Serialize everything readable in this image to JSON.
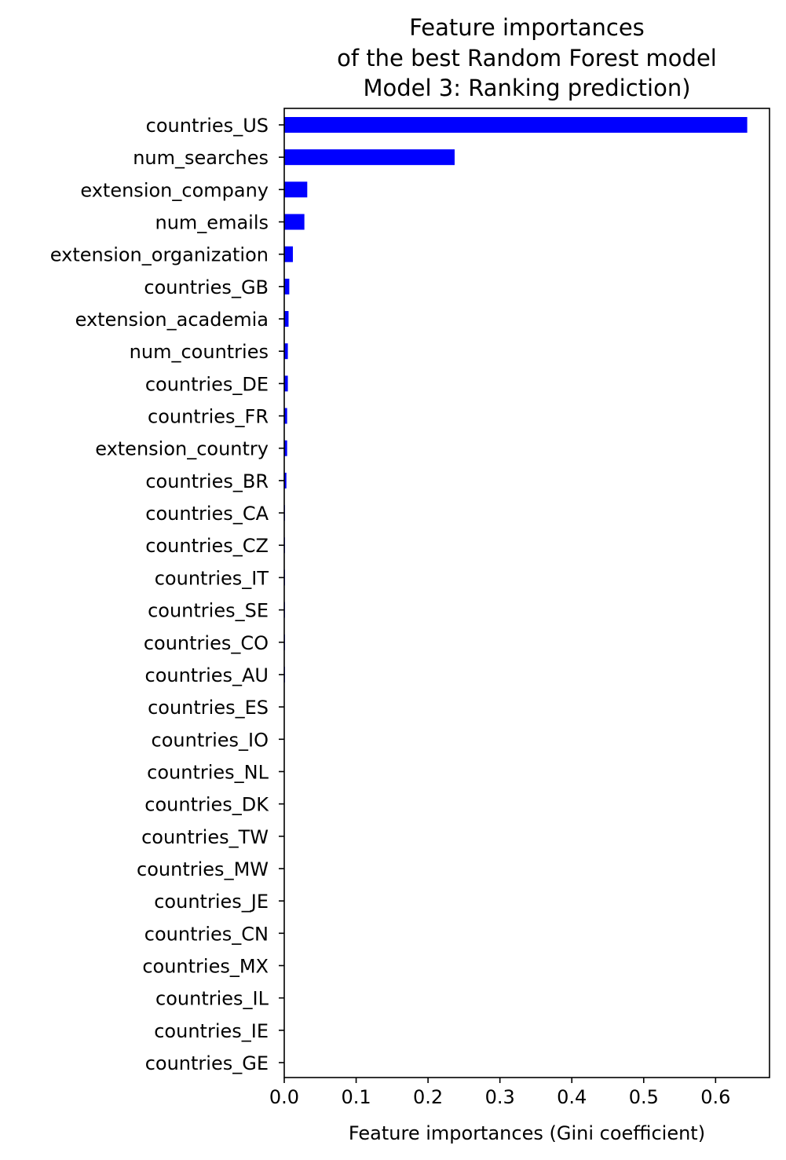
{
  "chart_data": {
    "type": "bar",
    "orientation": "horizontal",
    "title_lines": [
      "Feature importances",
      "of the best Random Forest model",
      "Model 3: Ranking prediction)"
    ],
    "xlabel": "Feature importances (Gini coefficient)",
    "ylabel": "",
    "xlim": [
      0,
      0.675
    ],
    "xticks": [
      "0.0",
      "0.1",
      "0.2",
      "0.3",
      "0.4",
      "0.5",
      "0.6"
    ],
    "bar_color": "#0000ff",
    "grid": false,
    "categories": [
      "countries_US",
      "num_searches",
      "extension_company",
      "num_emails",
      "extension_organization",
      "countries_GB",
      "extension_academia",
      "num_countries",
      "countries_DE",
      "countries_FR",
      "extension_country",
      "countries_BR",
      "countries_CA",
      "countries_CZ",
      "countries_IT",
      "countries_SE",
      "countries_CO",
      "countries_AU",
      "countries_ES",
      "countries_IO",
      "countries_NL",
      "countries_DK",
      "countries_TW",
      "countries_MW",
      "countries_JE",
      "countries_CN",
      "countries_MX",
      "countries_IL",
      "countries_IE",
      "countries_GE"
    ],
    "values": [
      0.644,
      0.237,
      0.032,
      0.028,
      0.012,
      0.007,
      0.006,
      0.005,
      0.005,
      0.004,
      0.004,
      0.003,
      0.001,
      0.001,
      0.001,
      0.001,
      0.001,
      0.001,
      0.0005,
      0.0005,
      0.0005,
      0.0005,
      0.0004,
      0.0003,
      0.0003,
      0.0003,
      0.0002,
      0.0002,
      0.0001,
      0.0001
    ]
  }
}
